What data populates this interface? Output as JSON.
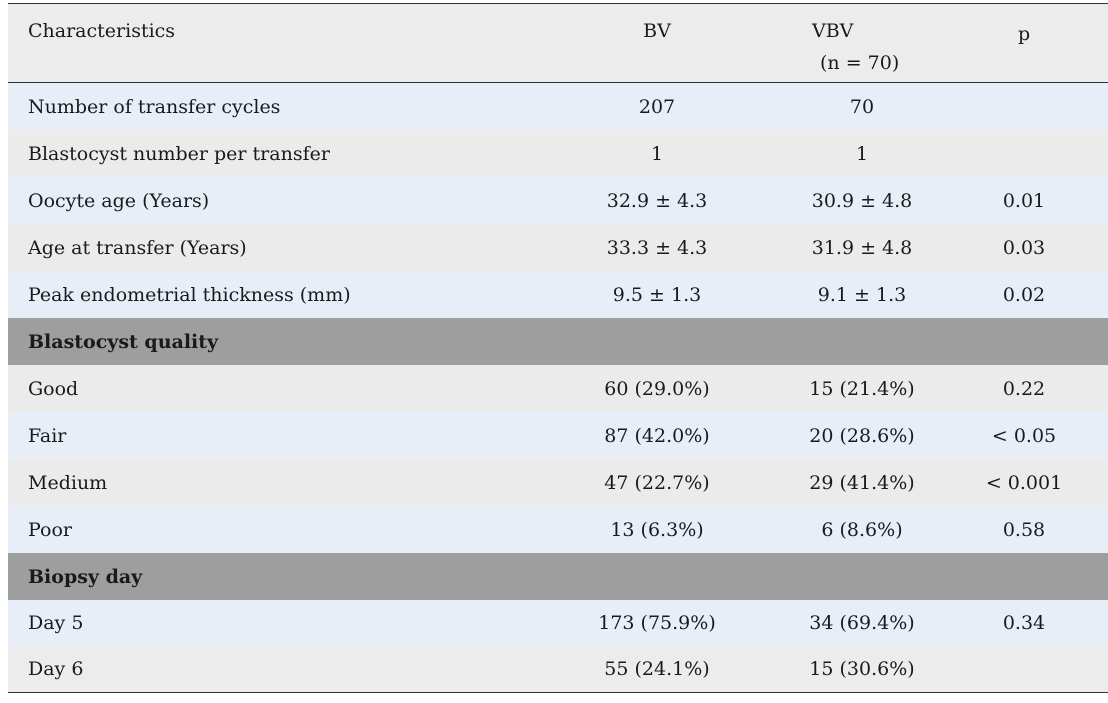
{
  "header": {
    "characteristics": "Characteristics",
    "bv": "BV",
    "vbv": "VBV",
    "vbv_n": "(n = 70)",
    "p": "p"
  },
  "rows": [
    {
      "label": "Number of transfer cycles",
      "bv": "207",
      "vbv": "70",
      "p": ""
    },
    {
      "label": "Blastocyst number per transfer",
      "bv": "1",
      "vbv": "1",
      "p": ""
    },
    {
      "label": "Oocyte age (Years)",
      "bv": "32.9 ± 4.3",
      "vbv": "30.9 ± 4.8",
      "p": "0.01"
    },
    {
      "label": "Age at transfer (Years)",
      "bv": "33.3 ± 4.3",
      "vbv": "31.9 ± 4.8",
      "p": "0.03"
    },
    {
      "label": "Peak endometrial thickness (mm)",
      "bv": "9.5 ± 1.3",
      "vbv": "9.1 ± 1.3",
      "p": "0.02"
    }
  ],
  "section_quality": "Blastocyst quality",
  "quality_rows": [
    {
      "label": "Good",
      "bv": "60 (29.0%)",
      "vbv": "15 (21.4%)",
      "p": "0.22"
    },
    {
      "label": "Fair",
      "bv": "87 (42.0%)",
      "vbv": "20 (28.6%)",
      "p": "< 0.05"
    },
    {
      "label": "Medium",
      "bv": "47 (22.7%)",
      "vbv": "29 (41.4%)",
      "p": "< 0.001"
    },
    {
      "label": "Poor",
      "bv": "13 (6.3%)",
      "vbv": "6 (8.6%)",
      "p": "0.58"
    }
  ],
  "section_biopsy": "Biopsy day",
  "biopsy_rows": [
    {
      "label": "Day 5",
      "bv": "173 (75.9%)",
      "vbv": "34 (69.4%)"
    },
    {
      "label": "Day 6",
      "bv": "55 (24.1%)",
      "vbv": "15 (30.6%)"
    }
  ],
  "biopsy_p": "0.34"
}
